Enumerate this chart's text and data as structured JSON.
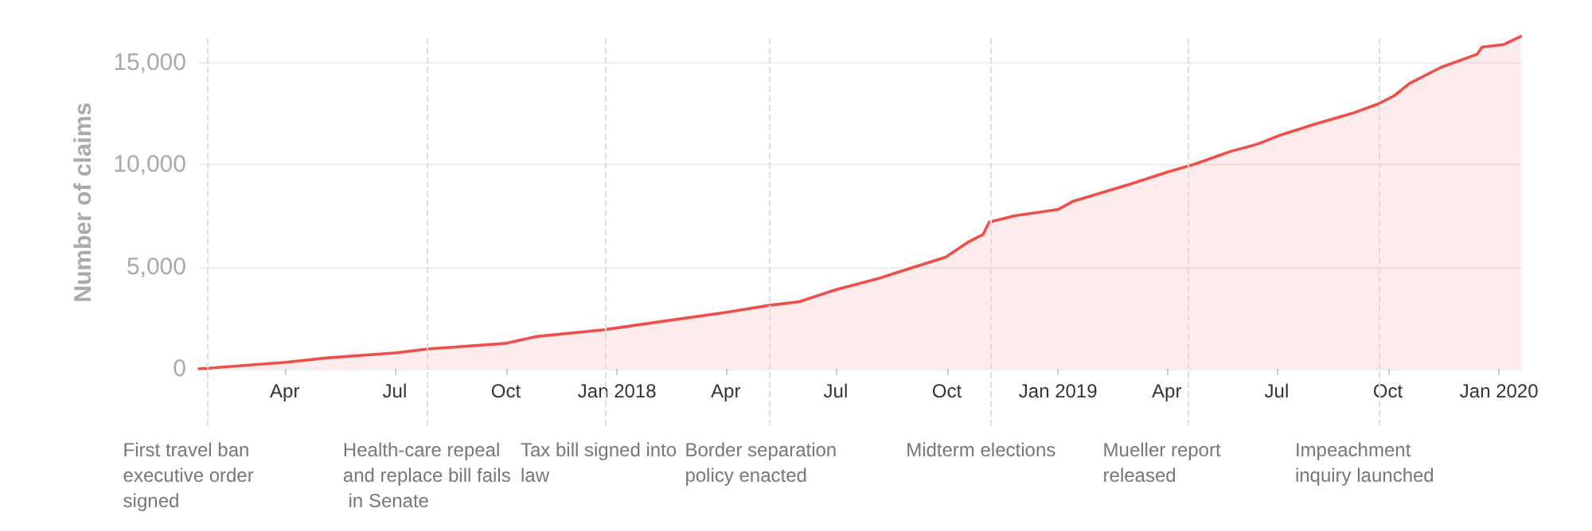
{
  "chart_data": {
    "type": "area",
    "ylabel": "Number of claims",
    "x": [
      "2017-01-20",
      "2017-04-02",
      "2017-05-05",
      "2017-07-03",
      "2017-07-28",
      "2017-09-30",
      "2017-10-26",
      "2017-12-22",
      "2018-02-13",
      "2018-04-01",
      "2018-05-06",
      "2018-06-01",
      "2018-07-01",
      "2018-08-05",
      "2018-09-05",
      "2018-09-30",
      "2018-10-18",
      "2018-10-31",
      "2018-11-05",
      "2018-11-26",
      "2019-01-01",
      "2019-01-13",
      "2019-03-02",
      "2019-04-02",
      "2019-04-23",
      "2019-05-24",
      "2019-06-15",
      "2019-07-03",
      "2019-08-02",
      "2019-09-01",
      "2019-09-23",
      "2019-10-06",
      "2019-10-19",
      "2019-11-14",
      "2019-12-14",
      "2019-12-18",
      "2020-01-05",
      "2020-01-19"
    ],
    "series": [
      {
        "color": "#ef4f4a",
        "values": [
          0,
          320,
          530,
          790,
          970,
          1240,
          1580,
          1920,
          2370,
          2760,
          3100,
          3290,
          3870,
          4420,
          5000,
          5470,
          6180,
          6580,
          7180,
          7490,
          7800,
          8190,
          9050,
          9640,
          10000,
          10650,
          11000,
          11420,
          11990,
          12500,
          12970,
          13360,
          13980,
          14760,
          15410,
          15750,
          15880,
          16270
        ]
      }
    ],
    "xlim": [
      "2017-01-20",
      "2020-01-20"
    ],
    "xticks": [
      {
        "value": "2017-04-01",
        "label": "Apr"
      },
      {
        "value": "2017-07-01",
        "label": "Jul"
      },
      {
        "value": "2017-10-01",
        "label": "Oct"
      },
      {
        "value": "2018-01-01",
        "label": "Jan 2018"
      },
      {
        "value": "2018-04-01",
        "label": "Apr"
      },
      {
        "value": "2018-07-01",
        "label": "Jul"
      },
      {
        "value": "2018-10-01",
        "label": "Oct"
      },
      {
        "value": "2019-01-01",
        "label": "Jan 2019"
      },
      {
        "value": "2019-04-01",
        "label": "Apr"
      },
      {
        "value": "2019-07-01",
        "label": "Jul"
      },
      {
        "value": "2019-10-01",
        "label": "Oct"
      },
      {
        "value": "2020-01-01",
        "label": "Jan 2020"
      }
    ],
    "ylim": [
      0,
      16300
    ],
    "yticks": [
      0,
      {
        "value": 5000,
        "label": "5,000"
      },
      {
        "value": 10000,
        "label": "10,000"
      },
      {
        "value": 15000,
        "label": "15,000"
      }
    ],
    "grid": "y",
    "marker": "none",
    "ref_lines": [
      {
        "axis": "x",
        "value": "2017-01-27",
        "label": "First travel ban executive order signed",
        "line_style": "dashed",
        "color": "#dddddd"
      },
      {
        "axis": "x",
        "value": "2017-07-28",
        "label": "Health-care repeal and replace bill fails in Senate",
        "line_style": "dashed",
        "color": "#dddddd"
      },
      {
        "axis": "x",
        "value": "2017-12-22",
        "label": "Tax bill signed into law",
        "line_style": "dashed",
        "color": "#dddddd"
      },
      {
        "axis": "x",
        "value": "2018-05-07",
        "label": "Border separation policy enacted",
        "line_style": "dashed",
        "color": "#dddddd"
      },
      {
        "axis": "x",
        "value": "2018-11-06",
        "label": "Midterm elections",
        "line_style": "dashed",
        "color": "#dddddd"
      },
      {
        "axis": "x",
        "value": "2019-04-18",
        "label": "Mueller report released",
        "line_style": "dashed",
        "color": "#dddddd"
      },
      {
        "axis": "x",
        "value": "2019-09-24",
        "label": "Impeachment inquiry launched",
        "line_style": "dashed",
        "color": "#dddddd"
      }
    ]
  }
}
